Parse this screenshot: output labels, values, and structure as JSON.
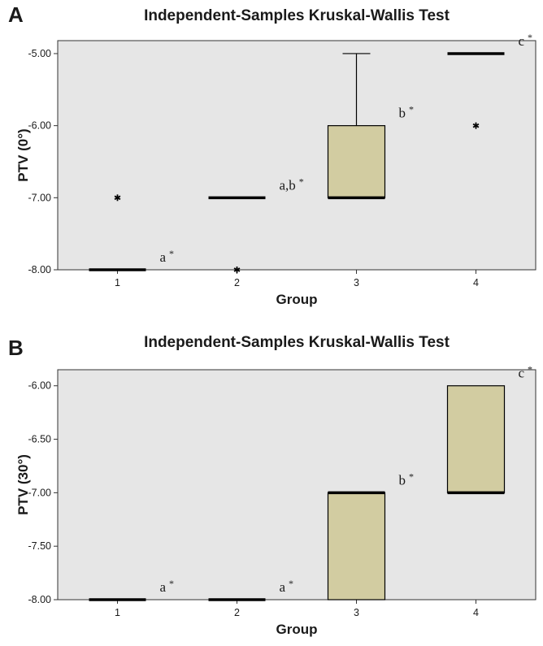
{
  "chart_data": [
    {
      "panel": "A",
      "type": "box",
      "title": "Independent-Samples Kruskal-Wallis Test",
      "xlabel": "Group",
      "ylabel": "PTV (0°)",
      "categories": [
        "1",
        "2",
        "3",
        "4"
      ],
      "ylim": [
        -8.0,
        -4.82
      ],
      "yticks": [
        "-5.00",
        "-6.00",
        "-7.00",
        "-8.00"
      ],
      "yticks_values": [
        -5.0,
        -6.0,
        -7.0,
        -8.0
      ],
      "boxes": [
        {
          "group": "1",
          "q1": -8.0,
          "median": -8.0,
          "q3": -8.0,
          "whisker_low": -8.0,
          "whisker_high": -8.0,
          "annotation": "a",
          "outliers": [],
          "extremes": [
            -7.0
          ]
        },
        {
          "group": "2",
          "q1": -7.0,
          "median": -7.0,
          "q3": -7.0,
          "whisker_low": -7.0,
          "whisker_high": -7.0,
          "annotation": "a,b",
          "outliers": [],
          "extremes": [
            -8.0
          ]
        },
        {
          "group": "3",
          "q1": -7.0,
          "median": -7.0,
          "q3": -6.0,
          "whisker_low": -7.0,
          "whisker_high": -5.0,
          "annotation": "b",
          "outliers": [],
          "extremes": []
        },
        {
          "group": "4",
          "q1": -5.0,
          "median": -5.0,
          "q3": -5.0,
          "whisker_low": -5.0,
          "whisker_high": -5.0,
          "annotation": "c",
          "outliers": [],
          "extremes": [
            -6.0
          ]
        }
      ]
    },
    {
      "panel": "B",
      "type": "box",
      "title": "Independent-Samples Kruskal-Wallis Test",
      "xlabel": "Group",
      "ylabel": "PTV (30°)",
      "categories": [
        "1",
        "2",
        "3",
        "4"
      ],
      "ylim": [
        -8.0,
        -5.85
      ],
      "yticks": [
        "-6.00",
        "-6.50",
        "-7.00",
        "-7.50",
        "-8.00"
      ],
      "yticks_values": [
        -6.0,
        -6.5,
        -7.0,
        -7.5,
        -8.0
      ],
      "boxes": [
        {
          "group": "1",
          "q1": -8.0,
          "median": -8.0,
          "q3": -8.0,
          "whisker_low": -8.0,
          "whisker_high": -8.0,
          "annotation": "a",
          "outliers": [],
          "extremes": []
        },
        {
          "group": "2",
          "q1": -8.0,
          "median": -8.0,
          "q3": -8.0,
          "whisker_low": -8.0,
          "whisker_high": -8.0,
          "annotation": "a",
          "outliers": [],
          "extremes": []
        },
        {
          "group": "3",
          "q1": -8.0,
          "median": -7.0,
          "q3": -7.0,
          "whisker_low": -8.0,
          "whisker_high": -7.0,
          "annotation": "b",
          "outliers": [],
          "extremes": []
        },
        {
          "group": "4",
          "q1": -7.0,
          "median": -7.0,
          "q3": -6.0,
          "whisker_low": -7.0,
          "whisker_high": -6.0,
          "annotation": "c",
          "outliers": [],
          "extremes": []
        }
      ]
    }
  ],
  "colors": {
    "plot_background": "#e6e6e6",
    "box_fill": "#d2cca1",
    "line": "#000000"
  }
}
